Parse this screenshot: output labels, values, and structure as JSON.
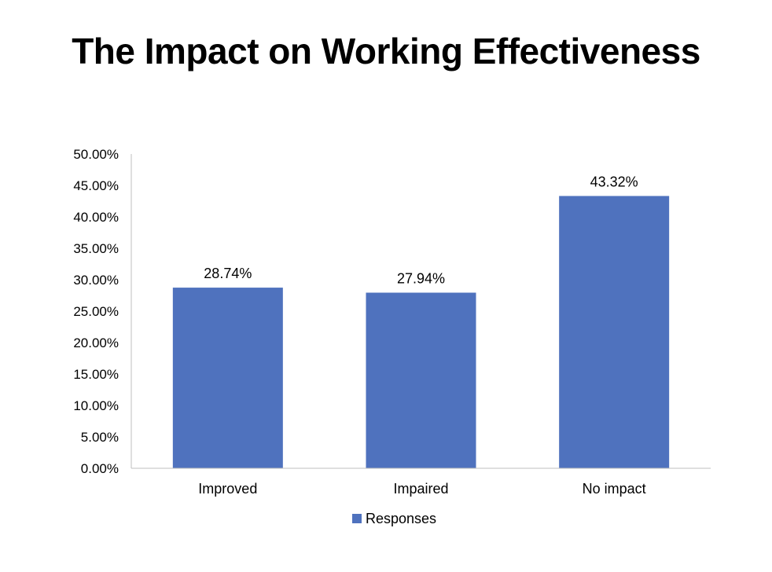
{
  "chart_data": {
    "type": "bar",
    "title": "The Impact on Working Effectiveness",
    "categories": [
      "Improved",
      "Impaired",
      "No impact"
    ],
    "series": [
      {
        "name": "Responses",
        "values": [
          28.74,
          27.94,
          43.32
        ]
      }
    ],
    "data_labels": [
      "28.74%",
      "27.94%",
      "43.32%"
    ],
    "ylim": [
      0,
      50
    ],
    "yticks": [
      0,
      5,
      10,
      15,
      20,
      25,
      30,
      35,
      40,
      45,
      50
    ],
    "ytick_labels": [
      "0.00%",
      "5.00%",
      "10.00%",
      "15.00%",
      "20.00%",
      "25.00%",
      "30.00%",
      "35.00%",
      "40.00%",
      "45.00%",
      "50.00%"
    ],
    "grid": false,
    "legend_position": "bottom",
    "bar_color": "#4f72be",
    "axis_color": "#bfbfbf"
  }
}
